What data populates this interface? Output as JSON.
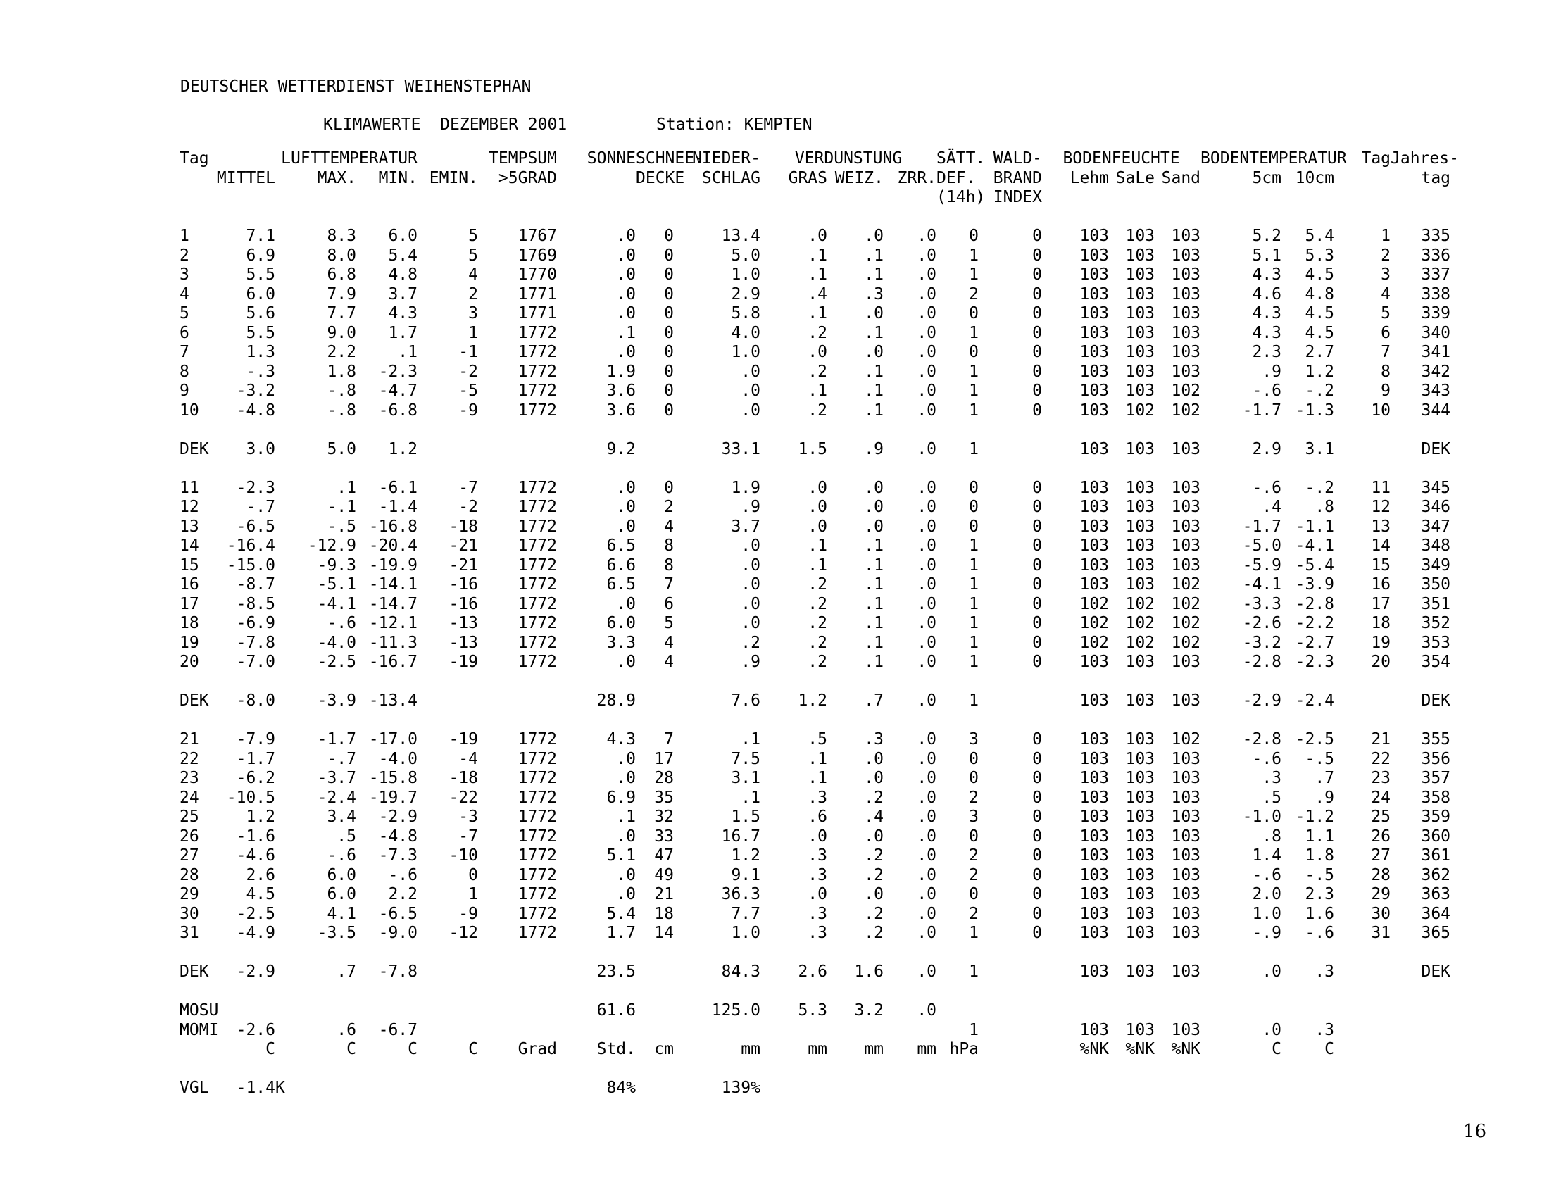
{
  "page": {
    "agency": "DEUTSCHER WETTERDIENST WEIHENSTEPHAN",
    "title": "KLIMAWERTE  DEZEMBER 2001",
    "station": "Station: KEMPTEN",
    "page_number": "16"
  },
  "table": {
    "header_rows": [
      [
        {
          "t": "Tag",
          "a": "l"
        },
        {
          "t": "LUFTTEMPERATUR",
          "s": 3,
          "a": "r"
        },
        "",
        {
          "t": "TEMPSUM",
          "a": "r"
        },
        {
          "t": "SONNE",
          "a": "r"
        },
        {
          "t": "SCHNEE-",
          "a": "c"
        },
        {
          "t": "NIEDER-",
          "a": "r"
        },
        {
          "t": "VERDUNSTUNG",
          "s": 3,
          "a": "c"
        },
        {
          "t": "SÄTT.",
          "a": "l"
        },
        {
          "t": "WALD-",
          "a": "r"
        },
        {
          "t": "BODENFEUCHTE",
          "s": 3,
          "a": "c"
        },
        {
          "t": "BODENTEMPERATUR",
          "s": 2,
          "a": "c"
        },
        {
          "t": "Tag",
          "a": "r"
        },
        {
          "t": "Jahres-",
          "a": "r"
        }
      ],
      [
        "",
        "MITTEL",
        "MAX.",
        "MIN.",
        "EMIN.",
        ">5GRAD",
        "",
        {
          "t": "DECKE",
          "a": "c"
        },
        "SCHLAG",
        "GRAS",
        "WEIZ.",
        "ZRR.",
        {
          "t": "DEF.",
          "a": "l"
        },
        "BRAND",
        "Lehm",
        "SaLe",
        "Sand",
        "5cm",
        "10cm",
        "",
        "tag"
      ],
      [
        "",
        "",
        "",
        "",
        "",
        "",
        "",
        "",
        "",
        "",
        "",
        "",
        {
          "t": "(14h)",
          "a": "l"
        },
        "INDEX",
        "",
        "",
        "",
        "",
        "",
        "",
        ""
      ]
    ],
    "rows": [
      {
        "blank": true
      },
      {
        "n": "table-row-day",
        "cells": [
          "1",
          "7.1",
          "8.3",
          "6.0",
          "5",
          "1767",
          ".0",
          "0",
          "13.4",
          ".0",
          ".0",
          ".0",
          "0",
          "0",
          "103",
          "103",
          "103",
          "5.2",
          "5.4",
          "1",
          "335"
        ]
      },
      {
        "n": "table-row-day",
        "cells": [
          "2",
          "6.9",
          "8.0",
          "5.4",
          "5",
          "1769",
          ".0",
          "0",
          "5.0",
          ".1",
          ".1",
          ".0",
          "1",
          "0",
          "103",
          "103",
          "103",
          "5.1",
          "5.3",
          "2",
          "336"
        ]
      },
      {
        "n": "table-row-day",
        "cells": [
          "3",
          "5.5",
          "6.8",
          "4.8",
          "4",
          "1770",
          ".0",
          "0",
          "1.0",
          ".1",
          ".1",
          ".0",
          "1",
          "0",
          "103",
          "103",
          "103",
          "4.3",
          "4.5",
          "3",
          "337"
        ]
      },
      {
        "n": "table-row-day",
        "cells": [
          "4",
          "6.0",
          "7.9",
          "3.7",
          "2",
          "1771",
          ".0",
          "0",
          "2.9",
          ".4",
          ".3",
          ".0",
          "2",
          "0",
          "103",
          "103",
          "103",
          "4.6",
          "4.8",
          "4",
          "338"
        ]
      },
      {
        "n": "table-row-day",
        "cells": [
          "5",
          "5.6",
          "7.7",
          "4.3",
          "3",
          "1771",
          ".0",
          "0",
          "5.8",
          ".1",
          ".0",
          ".0",
          "0",
          "0",
          "103",
          "103",
          "103",
          "4.3",
          "4.5",
          "5",
          "339"
        ]
      },
      {
        "n": "table-row-day",
        "cells": [
          "6",
          "5.5",
          "9.0",
          "1.7",
          "1",
          "1772",
          ".1",
          "0",
          "4.0",
          ".2",
          ".1",
          ".0",
          "1",
          "0",
          "103",
          "103",
          "103",
          "4.3",
          "4.5",
          "6",
          "340"
        ]
      },
      {
        "n": "table-row-day",
        "cells": [
          "7",
          "1.3",
          "2.2",
          ".1",
          "-1",
          "1772",
          ".0",
          "0",
          "1.0",
          ".0",
          ".0",
          ".0",
          "0",
          "0",
          "103",
          "103",
          "103",
          "2.3",
          "2.7",
          "7",
          "341"
        ]
      },
      {
        "n": "table-row-day",
        "cells": [
          "8",
          "-.3",
          "1.8",
          "-2.3",
          "-2",
          "1772",
          "1.9",
          "0",
          ".0",
          ".2",
          ".1",
          ".0",
          "1",
          "0",
          "103",
          "103",
          "103",
          ".9",
          "1.2",
          "8",
          "342"
        ]
      },
      {
        "n": "table-row-day",
        "cells": [
          "9",
          "-3.2",
          "-.8",
          "-4.7",
          "-5",
          "1772",
          "3.6",
          "0",
          ".0",
          ".1",
          ".1",
          ".0",
          "1",
          "0",
          "103",
          "103",
          "102",
          "-.6",
          "-.2",
          "9",
          "343"
        ]
      },
      {
        "n": "table-row-day",
        "cells": [
          "10",
          "-4.8",
          "-.8",
          "-6.8",
          "-9",
          "1772",
          "3.6",
          "0",
          ".0",
          ".2",
          ".1",
          ".0",
          "1",
          "0",
          "103",
          "102",
          "102",
          "-1.7",
          "-1.3",
          "10",
          "344"
        ]
      },
      {
        "blank": true
      },
      {
        "n": "dekade-summary-row",
        "cells": [
          "DEK",
          "3.0",
          "5.0",
          "1.2",
          "",
          "",
          "9.2",
          "",
          "33.1",
          "1.5",
          ".9",
          ".0",
          "1",
          "",
          "103",
          "103",
          "103",
          "2.9",
          "3.1",
          "",
          "DEK"
        ]
      },
      {
        "blank": true
      },
      {
        "n": "table-row-day",
        "cells": [
          "11",
          "-2.3",
          ".1",
          "-6.1",
          "-7",
          "1772",
          ".0",
          "0",
          "1.9",
          ".0",
          ".0",
          ".0",
          "0",
          "0",
          "103",
          "103",
          "103",
          "-.6",
          "-.2",
          "11",
          "345"
        ]
      },
      {
        "n": "table-row-day",
        "cells": [
          "12",
          "-.7",
          "-.1",
          "-1.4",
          "-2",
          "1772",
          ".0",
          "2",
          ".9",
          ".0",
          ".0",
          ".0",
          "0",
          "0",
          "103",
          "103",
          "103",
          ".4",
          ".8",
          "12",
          "346"
        ]
      },
      {
        "n": "table-row-day",
        "cells": [
          "13",
          "-6.5",
          "-.5",
          "-16.8",
          "-18",
          "1772",
          ".0",
          "4",
          "3.7",
          ".0",
          ".0",
          ".0",
          "0",
          "0",
          "103",
          "103",
          "103",
          "-1.7",
          "-1.1",
          "13",
          "347"
        ]
      },
      {
        "n": "table-row-day",
        "cells": [
          "14",
          "-16.4",
          "-12.9",
          "-20.4",
          "-21",
          "1772",
          "6.5",
          "8",
          ".0",
          ".1",
          ".1",
          ".0",
          "1",
          "0",
          "103",
          "103",
          "103",
          "-5.0",
          "-4.1",
          "14",
          "348"
        ]
      },
      {
        "n": "table-row-day",
        "cells": [
          "15",
          "-15.0",
          "-9.3",
          "-19.9",
          "-21",
          "1772",
          "6.6",
          "8",
          ".0",
          ".1",
          ".1",
          ".0",
          "1",
          "0",
          "103",
          "103",
          "103",
          "-5.9",
          "-5.4",
          "15",
          "349"
        ]
      },
      {
        "n": "table-row-day",
        "cells": [
          "16",
          "-8.7",
          "-5.1",
          "-14.1",
          "-16",
          "1772",
          "6.5",
          "7",
          ".0",
          ".2",
          ".1",
          ".0",
          "1",
          "0",
          "103",
          "103",
          "102",
          "-4.1",
          "-3.9",
          "16",
          "350"
        ]
      },
      {
        "n": "table-row-day",
        "cells": [
          "17",
          "-8.5",
          "-4.1",
          "-14.7",
          "-16",
          "1772",
          ".0",
          "6",
          ".0",
          ".2",
          ".1",
          ".0",
          "1",
          "0",
          "102",
          "102",
          "102",
          "-3.3",
          "-2.8",
          "17",
          "351"
        ]
      },
      {
        "n": "table-row-day",
        "cells": [
          "18",
          "-6.9",
          "-.6",
          "-12.1",
          "-13",
          "1772",
          "6.0",
          "5",
          ".0",
          ".2",
          ".1",
          ".0",
          "1",
          "0",
          "102",
          "102",
          "102",
          "-2.6",
          "-2.2",
          "18",
          "352"
        ]
      },
      {
        "n": "table-row-day",
        "cells": [
          "19",
          "-7.8",
          "-4.0",
          "-11.3",
          "-13",
          "1772",
          "3.3",
          "4",
          ".2",
          ".2",
          ".1",
          ".0",
          "1",
          "0",
          "102",
          "102",
          "102",
          "-3.2",
          "-2.7",
          "19",
          "353"
        ]
      },
      {
        "n": "table-row-day",
        "cells": [
          "20",
          "-7.0",
          "-2.5",
          "-16.7",
          "-19",
          "1772",
          ".0",
          "4",
          ".9",
          ".2",
          ".1",
          ".0",
          "1",
          "0",
          "103",
          "103",
          "103",
          "-2.8",
          "-2.3",
          "20",
          "354"
        ]
      },
      {
        "blank": true
      },
      {
        "n": "dekade-summary-row",
        "cells": [
          "DEK",
          "-8.0",
          "-3.9",
          "-13.4",
          "",
          "",
          "28.9",
          "",
          "7.6",
          "1.2",
          ".7",
          ".0",
          "1",
          "",
          "103",
          "103",
          "103",
          "-2.9",
          "-2.4",
          "",
          "DEK"
        ]
      },
      {
        "blank": true
      },
      {
        "n": "table-row-day",
        "cells": [
          "21",
          "-7.9",
          "-1.7",
          "-17.0",
          "-19",
          "1772",
          "4.3",
          "7",
          ".1",
          ".5",
          ".3",
          ".0",
          "3",
          "0",
          "103",
          "103",
          "102",
          "-2.8",
          "-2.5",
          "21",
          "355"
        ]
      },
      {
        "n": "table-row-day",
        "cells": [
          "22",
          "-1.7",
          "-.7",
          "-4.0",
          "-4",
          "1772",
          ".0",
          "17",
          "7.5",
          ".1",
          ".0",
          ".0",
          "0",
          "0",
          "103",
          "103",
          "103",
          "-.6",
          "-.5",
          "22",
          "356"
        ]
      },
      {
        "n": "table-row-day",
        "cells": [
          "23",
          "-6.2",
          "-3.7",
          "-15.8",
          "-18",
          "1772",
          ".0",
          "28",
          "3.1",
          ".1",
          ".0",
          ".0",
          "0",
          "0",
          "103",
          "103",
          "103",
          ".3",
          ".7",
          "23",
          "357"
        ]
      },
      {
        "n": "table-row-day",
        "cells": [
          "24",
          "-10.5",
          "-2.4",
          "-19.7",
          "-22",
          "1772",
          "6.9",
          "35",
          ".1",
          ".3",
          ".2",
          ".0",
          "2",
          "0",
          "103",
          "103",
          "103",
          ".5",
          ".9",
          "24",
          "358"
        ]
      },
      {
        "n": "table-row-day",
        "cells": [
          "25",
          "1.2",
          "3.4",
          "-2.9",
          "-3",
          "1772",
          ".1",
          "32",
          "1.5",
          ".6",
          ".4",
          ".0",
          "3",
          "0",
          "103",
          "103",
          "103",
          "-1.0",
          "-1.2",
          "25",
          "359"
        ]
      },
      {
        "n": "table-row-day",
        "cells": [
          "26",
          "-1.6",
          ".5",
          "-4.8",
          "-7",
          "1772",
          ".0",
          "33",
          "16.7",
          ".0",
          ".0",
          ".0",
          "0",
          "0",
          "103",
          "103",
          "103",
          ".8",
          "1.1",
          "26",
          "360"
        ]
      },
      {
        "n": "table-row-day",
        "cells": [
          "27",
          "-4.6",
          "-.6",
          "-7.3",
          "-10",
          "1772",
          "5.1",
          "47",
          "1.2",
          ".3",
          ".2",
          ".0",
          "2",
          "0",
          "103",
          "103",
          "103",
          "1.4",
          "1.8",
          "27",
          "361"
        ]
      },
      {
        "n": "table-row-day",
        "cells": [
          "28",
          "2.6",
          "6.0",
          "-.6",
          "0",
          "1772",
          ".0",
          "49",
          "9.1",
          ".3",
          ".2",
          ".0",
          "2",
          "0",
          "103",
          "103",
          "103",
          "-.6",
          "-.5",
          "28",
          "362"
        ]
      },
      {
        "n": "table-row-day",
        "cells": [
          "29",
          "4.5",
          "6.0",
          "2.2",
          "1",
          "1772",
          ".0",
          "21",
          "36.3",
          ".0",
          ".0",
          ".0",
          "0",
          "0",
          "103",
          "103",
          "103",
          "2.0",
          "2.3",
          "29",
          "363"
        ]
      },
      {
        "n": "table-row-day",
        "cells": [
          "30",
          "-2.5",
          "4.1",
          "-6.5",
          "-9",
          "1772",
          "5.4",
          "18",
          "7.7",
          ".3",
          ".2",
          ".0",
          "2",
          "0",
          "103",
          "103",
          "103",
          "1.0",
          "1.6",
          "30",
          "364"
        ]
      },
      {
        "n": "table-row-day",
        "cells": [
          "31",
          "-4.9",
          "-3.5",
          "-9.0",
          "-12",
          "1772",
          "1.7",
          "14",
          "1.0",
          ".3",
          ".2",
          ".0",
          "1",
          "0",
          "103",
          "103",
          "103",
          "-.9",
          "-.6",
          "31",
          "365"
        ]
      },
      {
        "blank": true
      },
      {
        "n": "dekade-summary-row",
        "cells": [
          "DEK",
          "-2.9",
          ".7",
          "-7.8",
          "",
          "",
          "23.5",
          "",
          "84.3",
          "2.6",
          "1.6",
          ".0",
          "1",
          "",
          "103",
          "103",
          "103",
          ".0",
          ".3",
          "",
          "DEK"
        ]
      },
      {
        "blank": true
      },
      {
        "n": "monthly-sum-row",
        "cells": [
          "MOSU",
          "",
          "",
          "",
          "",
          "",
          "61.6",
          "",
          "125.0",
          "5.3",
          "3.2",
          ".0",
          "",
          "",
          "",
          "",
          "",
          "",
          "",
          "",
          ""
        ]
      },
      {
        "n": "monthly-mean-row",
        "cells": [
          "MOMI",
          "-2.6",
          ".6",
          "-6.7",
          "",
          "",
          "",
          "",
          "",
          "",
          "",
          "",
          "1",
          "",
          "103",
          "103",
          "103",
          ".0",
          ".3",
          "",
          ""
        ]
      },
      {
        "n": "units-row",
        "cells": [
          "",
          "C",
          "C",
          "C",
          "C",
          "Grad",
          "Std.",
          "cm",
          "mm",
          "mm",
          "mm",
          "mm",
          "hPa",
          "",
          "%NK",
          "%NK",
          "%NK",
          "C",
          "C",
          "",
          ""
        ]
      },
      {
        "blank": true
      },
      {
        "n": "comparison-row",
        "cells": [
          "VGL",
          "-1.4",
          {
            "t": "K",
            "a": "l"
          },
          "",
          "",
          "",
          "84%",
          "",
          "139%",
          "",
          "",
          "",
          "",
          "",
          "",
          "",
          "",
          "",
          "",
          "",
          ""
        ]
      }
    ]
  }
}
